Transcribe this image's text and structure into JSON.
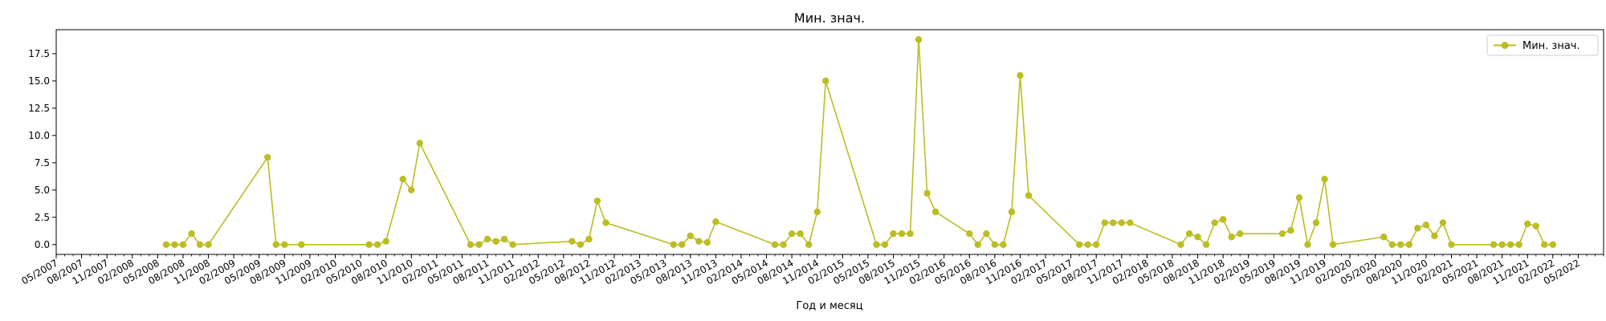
{
  "chart_data": {
    "type": "line",
    "title": "Мин. знач.",
    "xlabel": "Год и месяц",
    "ylabel": "",
    "xlim": [
      "2007-05",
      "2022-08"
    ],
    "ylim": [
      -0.9,
      19.7
    ],
    "yticks": [
      0.0,
      2.5,
      5.0,
      7.5,
      10.0,
      12.5,
      15.0,
      17.5
    ],
    "ytick_labels": [
      "0.0",
      "2.5",
      "5.0",
      "7.5",
      "10.0",
      "12.5",
      "15.0",
      "17.5"
    ],
    "xtick_labels": [
      "05/2007",
      "08/2007",
      "11/2007",
      "02/2008",
      "05/2008",
      "08/2008",
      "11/2008",
      "02/2009",
      "05/2009",
      "08/2009",
      "11/2009",
      "02/2010",
      "05/2010",
      "08/2010",
      "11/2010",
      "02/2011",
      "05/2011",
      "08/2011",
      "11/2011",
      "02/2012",
      "05/2012",
      "08/2012",
      "11/2012",
      "02/2013",
      "05/2013",
      "08/2013",
      "11/2013",
      "02/2014",
      "05/2014",
      "08/2014",
      "11/2014",
      "02/2015",
      "05/2015",
      "08/2015",
      "11/2015",
      "02/2016",
      "05/2016",
      "08/2016",
      "11/2016",
      "02/2017",
      "05/2017",
      "08/2017",
      "11/2017",
      "02/2018",
      "05/2018",
      "08/2018",
      "11/2018",
      "02/2019",
      "05/2019",
      "08/2019",
      "11/2019",
      "02/2020",
      "05/2020",
      "08/2020",
      "11/2020",
      "02/2021",
      "05/2021",
      "08/2021",
      "11/2021",
      "02/2022",
      "05/2022"
    ],
    "grid": false,
    "legend_position": "top-right",
    "series": [
      {
        "name": "Мин. знач.",
        "color": "#bcbd22",
        "marker": "circle",
        "points": [
          [
            "2008-06",
            0
          ],
          [
            "2008-07",
            0
          ],
          [
            "2008-08",
            0
          ],
          [
            "2008-09",
            1
          ],
          [
            "2008-10",
            0
          ],
          [
            "2008-11",
            0
          ],
          [
            "2009-06",
            8
          ],
          [
            "2009-07",
            0
          ],
          [
            "2009-08",
            0
          ],
          [
            "2009-10",
            0
          ],
          [
            "2010-06",
            0
          ],
          [
            "2010-07",
            0
          ],
          [
            "2010-08",
            0.3
          ],
          [
            "2010-10",
            6
          ],
          [
            "2010-11",
            5
          ],
          [
            "2010-12",
            9.3
          ],
          [
            "2011-06",
            0
          ],
          [
            "2011-07",
            0
          ],
          [
            "2011-08",
            0.5
          ],
          [
            "2011-09",
            0.3
          ],
          [
            "2011-10",
            0.5
          ],
          [
            "2011-11",
            0
          ],
          [
            "2012-06",
            0.3
          ],
          [
            "2012-07",
            0
          ],
          [
            "2012-08",
            0.5
          ],
          [
            "2012-09",
            4
          ],
          [
            "2012-10",
            2
          ],
          [
            "2013-06",
            0
          ],
          [
            "2013-07",
            0
          ],
          [
            "2013-08",
            0.8
          ],
          [
            "2013-09",
            0.3
          ],
          [
            "2013-10",
            0.2
          ],
          [
            "2013-11",
            2.1
          ],
          [
            "2014-06",
            0
          ],
          [
            "2014-07",
            0
          ],
          [
            "2014-08",
            1
          ],
          [
            "2014-09",
            1
          ],
          [
            "2014-10",
            0
          ],
          [
            "2014-11",
            3
          ],
          [
            "2014-12",
            15
          ],
          [
            "2015-06",
            0
          ],
          [
            "2015-07",
            0
          ],
          [
            "2015-08",
            1
          ],
          [
            "2015-09",
            1
          ],
          [
            "2015-10",
            1
          ],
          [
            "2015-11",
            18.8
          ],
          [
            "2015-12",
            4.7
          ],
          [
            "2016-01",
            3
          ],
          [
            "2016-05",
            1
          ],
          [
            "2016-06",
            0
          ],
          [
            "2016-07",
            1
          ],
          [
            "2016-08",
            0
          ],
          [
            "2016-09",
            0
          ],
          [
            "2016-10",
            3
          ],
          [
            "2016-11",
            15.5
          ],
          [
            "2016-12",
            4.5
          ],
          [
            "2017-06",
            0
          ],
          [
            "2017-07",
            0
          ],
          [
            "2017-08",
            0
          ],
          [
            "2017-09",
            2
          ],
          [
            "2017-10",
            2
          ],
          [
            "2017-11",
            2
          ],
          [
            "2017-12",
            2
          ],
          [
            "2018-06",
            0
          ],
          [
            "2018-07",
            1
          ],
          [
            "2018-08",
            0.7
          ],
          [
            "2018-09",
            0
          ],
          [
            "2018-10",
            2
          ],
          [
            "2018-11",
            2.3
          ],
          [
            "2018-12",
            0.7
          ],
          [
            "2019-01",
            1
          ],
          [
            "2019-06",
            1
          ],
          [
            "2019-07",
            1.3
          ],
          [
            "2019-08",
            4.3
          ],
          [
            "2019-09",
            0
          ],
          [
            "2019-10",
            2
          ],
          [
            "2019-11",
            6
          ],
          [
            "2019-12",
            0
          ],
          [
            "2020-06",
            0.7
          ],
          [
            "2020-07",
            0
          ],
          [
            "2020-08",
            0
          ],
          [
            "2020-09",
            0
          ],
          [
            "2020-10",
            1.5
          ],
          [
            "2020-11",
            1.8
          ],
          [
            "2020-12",
            0.8
          ],
          [
            "2021-01",
            2
          ],
          [
            "2021-02",
            0
          ],
          [
            "2021-07",
            0
          ],
          [
            "2021-08",
            0
          ],
          [
            "2021-09",
            0
          ],
          [
            "2021-10",
            0
          ],
          [
            "2021-11",
            1.9
          ],
          [
            "2021-12",
            1.7
          ],
          [
            "2022-01",
            0
          ],
          [
            "2022-02",
            0
          ]
        ]
      }
    ]
  }
}
